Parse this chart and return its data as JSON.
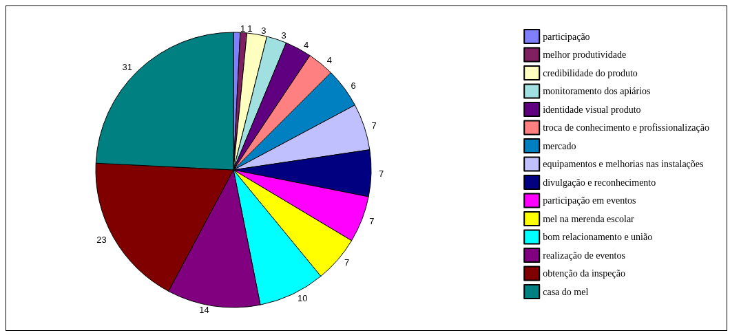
{
  "chart_data": {
    "type": "pie",
    "categories": [
      "participação",
      "melhor produtividade",
      "credibilidade do produto",
      "monitoramento dos apiários",
      "identidade visual produto",
      "troca de conhecimento e profissionalização",
      "mercado",
      "equipamentos e melhorias nas instalações",
      "divulgação e reconhecimento",
      "participação em eventos",
      "mel na merenda escolar",
      "bom relacionamento e união",
      "realização de eventos",
      "obtenção da inspeção",
      "casa do mel"
    ],
    "values": [
      1,
      1,
      3,
      3,
      4,
      4,
      6,
      7,
      7,
      7,
      7,
      10,
      14,
      23,
      31
    ],
    "colors": [
      "#8080ff",
      "#802060",
      "#ffffc0",
      "#a0e0e0",
      "#600080",
      "#ff8080",
      "#0080c0",
      "#c0c0ff",
      "#000080",
      "#ff00ff",
      "#ffff00",
      "#00ffff",
      "#800080",
      "#800000",
      "#008080"
    ],
    "data_labels": true,
    "legend": "right"
  }
}
